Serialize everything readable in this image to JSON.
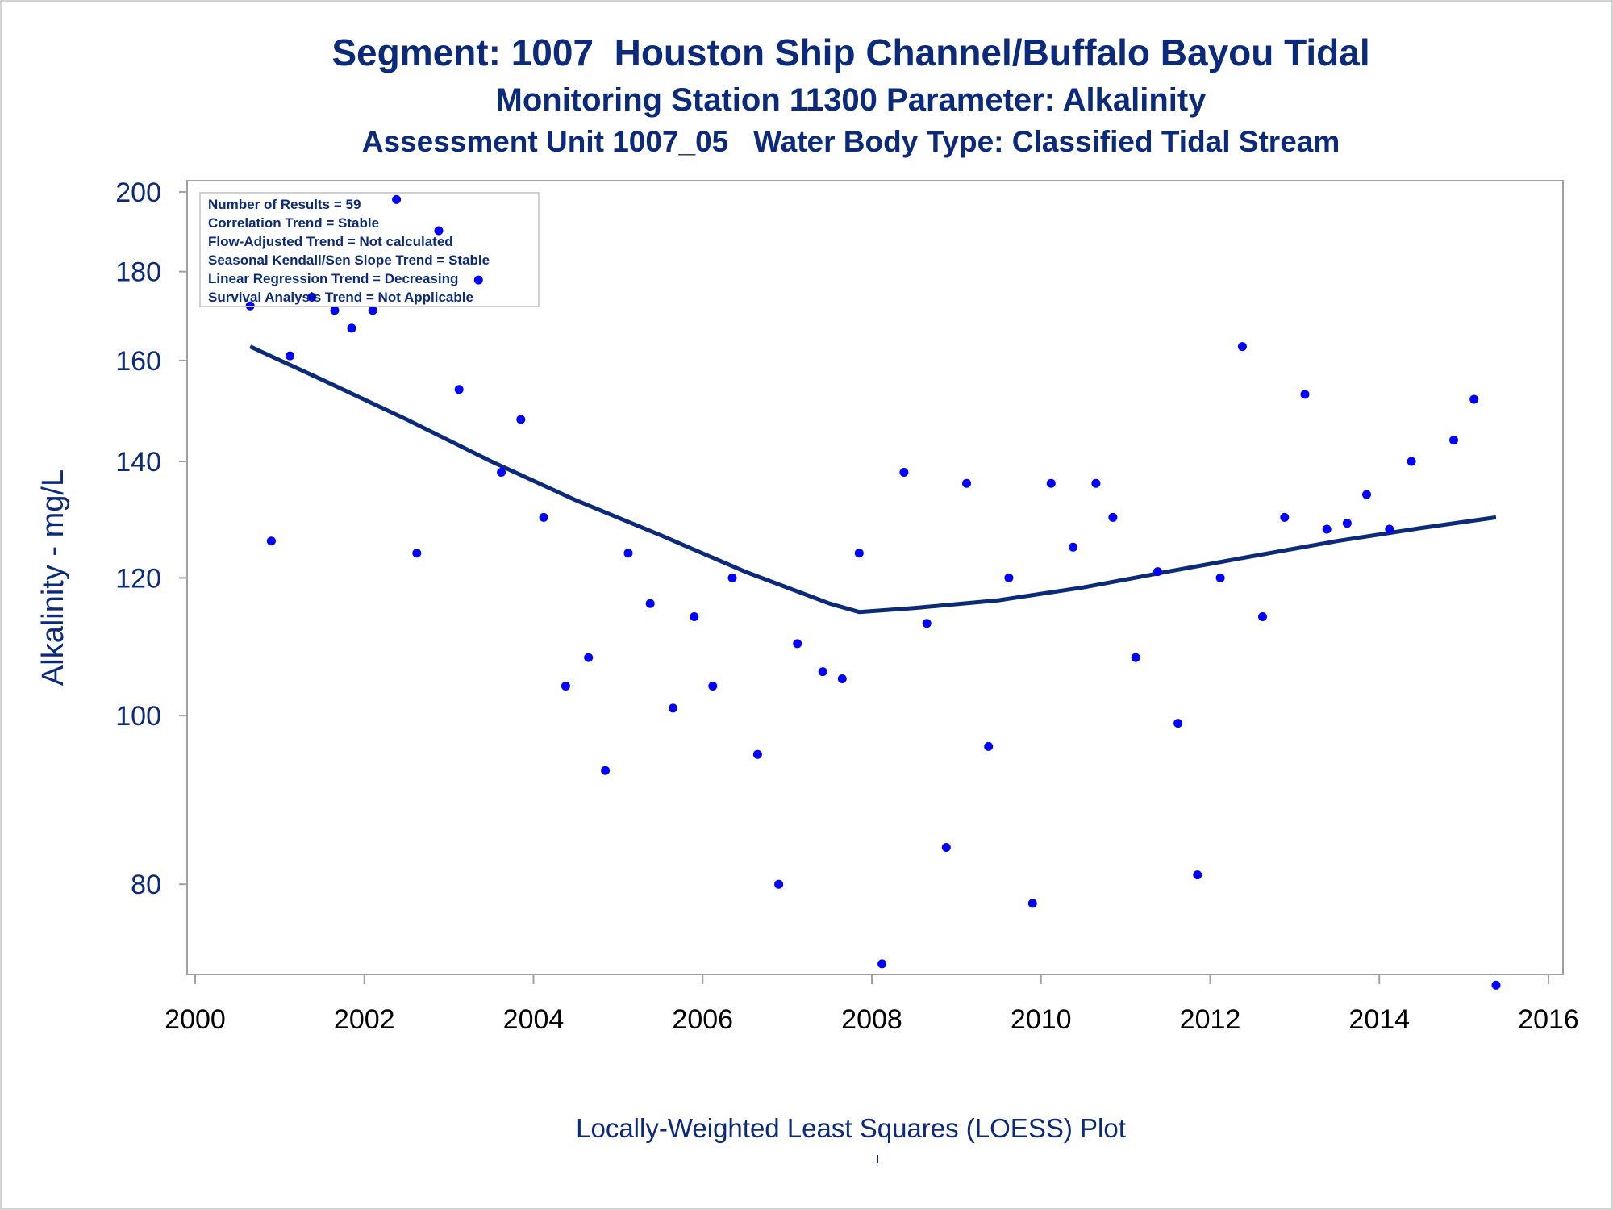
{
  "titles": {
    "line1": "Segment: 1007  Houston Ship Channel/Buffalo Bayou Tidal",
    "line2": "Monitoring Station 11300 Parameter: Alkalinity",
    "line3": "Assessment Unit 1007_05   Water Body Type: Classified Tidal Stream"
  },
  "footnote": "Locally-Weighted Least Squares (LOESS) Plot",
  "stats_box": [
    "Number of Results = 59",
    "Correlation Trend = Stable",
    "Flow-Adjusted Trend = Not calculated",
    "Seasonal Kendall/Sen Slope Trend = Stable",
    "Linear Regression Trend = Decreasing",
    "Survival Analysis Trend = Not Applicable"
  ],
  "colors": {
    "text": "#0b2a7a",
    "points": "#0000ff",
    "loess_line": "#0b2a7a",
    "frame": "#a0a0a0"
  },
  "chart_data": {
    "type": "scatter",
    "title": "Segment: 1007  Houston Ship Channel/Buffalo Bayou Tidal",
    "xlabel": "",
    "ylabel": "Alkalinity - mg/L",
    "y_scale": "log",
    "xlim": [
      2000,
      2016
    ],
    "ylim": [
      71,
      203
    ],
    "x_ticks": [
      2000,
      2002,
      2004,
      2006,
      2008,
      2010,
      2012,
      2014,
      2016
    ],
    "y_ticks": [
      80,
      100,
      120,
      140,
      160,
      180,
      200
    ],
    "grid": false,
    "series": [
      {
        "kind": "points",
        "x": [
          2000.65,
          2000.9,
          2001.12,
          2001.38,
          2001.65,
          2001.85,
          2002.1,
          2002.38,
          2002.62,
          2002.88,
          2003.12,
          2003.35,
          2003.62,
          2003.85,
          2004.12,
          2004.38,
          2004.65,
          2004.85,
          2005.12,
          2005.38,
          2005.65,
          2005.9,
          2006.12,
          2006.35,
          2006.65,
          2006.9,
          2007.12,
          2007.42,
          2007.65,
          2007.85,
          2008.12,
          2008.38,
          2008.65,
          2008.88,
          2009.12,
          2009.38,
          2009.62,
          2009.9,
          2010.12,
          2010.38,
          2010.65,
          2010.85,
          2011.12,
          2011.38,
          2011.62,
          2011.85,
          2012.12,
          2012.38,
          2012.62,
          2012.88,
          2013.12,
          2013.38,
          2013.62,
          2013.85,
          2014.12,
          2014.38,
          2014.88,
          2015.12,
          2015.38
        ],
        "y": [
          172,
          126,
          161,
          174,
          171,
          167,
          171,
          198,
          124,
          190,
          154,
          178,
          138,
          148,
          130,
          104,
          108,
          93,
          124,
          116,
          101,
          114,
          104,
          120,
          95,
          80,
          110,
          106,
          105,
          124,
          72,
          138,
          113,
          84,
          136,
          96,
          120,
          78,
          136,
          125,
          136,
          130,
          108,
          121,
          99,
          81,
          120,
          163,
          114,
          130,
          153,
          128,
          129,
          134,
          128,
          140,
          144,
          152,
          70
        ]
      },
      {
        "kind": "loess",
        "x": [
          2000.65,
          2001.5,
          2002.5,
          2003.5,
          2004.5,
          2005.5,
          2006.5,
          2007.5,
          2007.85,
          2008.5,
          2009.5,
          2010.5,
          2011.5,
          2012.5,
          2013.5,
          2014.5,
          2015.38
        ],
        "y": [
          163,
          156,
          148,
          140,
          133,
          127,
          121,
          116,
          114.7,
          115.3,
          116.5,
          118.5,
          121,
          123.5,
          126,
          128.2,
          130
        ]
      }
    ]
  }
}
